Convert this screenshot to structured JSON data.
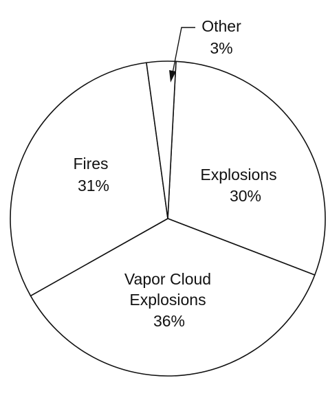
{
  "chart_data": {
    "type": "pie",
    "title": "",
    "slices": [
      {
        "label": "Explosions",
        "value": 30,
        "value_label": "30%"
      },
      {
        "label": "Vapor Cloud Explosions",
        "label_lines": [
          "Vapor Cloud",
          "Explosions"
        ],
        "value": 36,
        "value_label": "36%"
      },
      {
        "label": "Fires",
        "value": 31,
        "value_label": "31%"
      },
      {
        "label": "Other",
        "value": 3,
        "value_label": "3%"
      }
    ],
    "legend": "none",
    "colors": {
      "fill": "#ffffff",
      "stroke": "#111111"
    }
  }
}
